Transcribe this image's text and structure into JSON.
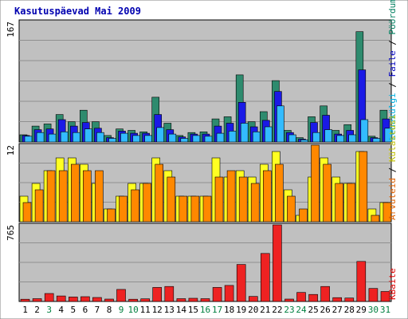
{
  "chart_data": [
    {
      "type": "bar",
      "title": "Kasutuspäevad Mai 2009",
      "y_max_label": "167",
      "ylim": [
        0,
        167
      ],
      "grid": true,
      "categories": [
        "1",
        "2",
        "3",
        "4",
        "5",
        "6",
        "7",
        "8",
        "9",
        "10",
        "11",
        "12",
        "13",
        "14",
        "15",
        "16",
        "17",
        "18",
        "19",
        "20",
        "21",
        "22",
        "23",
        "24",
        "25",
        "26",
        "27",
        "28",
        "29",
        "30",
        "31"
      ],
      "weekend_days": [
        "3",
        "9",
        "10",
        "16",
        "17",
        "23",
        "24",
        "30",
        "31"
      ],
      "colors": {
        "weekend_label": "#008040",
        "weekday_label": "#000000"
      },
      "legend": [
        {
          "name": "Pöördumisi",
          "color": "#008060"
        },
        {
          "name": "Faile",
          "color": "#0000c0"
        },
        {
          "name": "Lehekülgi",
          "color": "#00b0e0"
        }
      ],
      "series": [
        {
          "name": "Pöördumisi",
          "color": "#2e8b6e",
          "values": [
            10,
            22,
            25,
            38,
            28,
            44,
            28,
            9,
            18,
            16,
            14,
            62,
            26,
            9,
            13,
            14,
            32,
            35,
            93,
            28,
            42,
            85,
            16,
            6,
            35,
            50,
            16,
            24,
            153,
            8,
            44
          ]
        },
        {
          "name": "Faile",
          "color": "#1a1ae6",
          "values": [
            9,
            17,
            18,
            31,
            22,
            27,
            19,
            6,
            15,
            12,
            12,
            38,
            17,
            7,
            11,
            11,
            22,
            26,
            55,
            21,
            30,
            70,
            13,
            4,
            27,
            37,
            11,
            16,
            100,
            6,
            32
          ]
        },
        {
          "name": "Lehekülgi",
          "color": "#33bbff",
          "values": [
            8,
            13,
            11,
            14,
            13,
            18,
            13,
            5,
            12,
            9,
            9,
            20,
            11,
            5,
            9,
            8,
            12,
            15,
            26,
            14,
            21,
            50,
            10,
            3,
            13,
            17,
            9,
            10,
            31,
            5,
            19
          ]
        }
      ]
    },
    {
      "type": "bar",
      "y_max_label": "12",
      "ylim": [
        0,
        12
      ],
      "grid": true,
      "legend": [
        {
          "name": "Arvuteid",
          "color": "#e06000"
        },
        {
          "name": "Külastusi",
          "color": "#e0e000"
        }
      ],
      "series": [
        {
          "name": "Külastusi",
          "color": "#ffff22",
          "values": [
            4,
            6,
            8,
            10,
            10,
            9,
            6,
            2,
            4,
            6,
            6,
            10,
            8,
            4,
            4,
            4,
            10,
            7,
            8,
            7,
            9,
            11,
            5,
            1,
            7,
            10,
            7,
            6,
            11,
            2,
            3
          ]
        },
        {
          "name": "Arvuteid",
          "color": "#ff8800",
          "values": [
            3,
            5,
            8,
            8,
            9,
            8,
            8,
            2,
            4,
            5,
            6,
            9,
            7,
            4,
            4,
            4,
            7,
            8,
            7,
            6,
            8,
            9,
            4,
            2,
            12,
            9,
            6,
            6,
            11,
            1,
            3
          ]
        }
      ]
    },
    {
      "type": "bar",
      "y_max_label": "765",
      "ylim": [
        0,
        765
      ],
      "grid": true,
      "legend": [
        {
          "name": "KBaite",
          "color": "#e00000"
        }
      ],
      "series": [
        {
          "name": "KBaite",
          "color": "#ee2222",
          "values": [
            22,
            28,
            80,
            55,
            45,
            48,
            40,
            24,
            120,
            22,
            26,
            140,
            150,
            28,
            32,
            28,
            140,
            160,
            370,
            50,
            480,
            765,
            24,
            90,
            70,
            150,
            38,
            34,
            400,
            130,
            100
          ]
        }
      ]
    }
  ]
}
